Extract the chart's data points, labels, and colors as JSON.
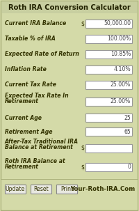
{
  "title": "Roth IRA Conversion Calculator",
  "bg_color": "#d4daa8",
  "title_bg": "#c8cfa0",
  "border_color": "#a8ae78",
  "fields": [
    {
      "label": "Current IRA Balance",
      "label2": "",
      "has_dollar": true,
      "value": "50,000.00"
    },
    {
      "label": "Taxable % of IRA",
      "label2": "",
      "has_dollar": false,
      "value": "100.00%"
    },
    {
      "label": "Expected Rate of Return",
      "label2": "",
      "has_dollar": false,
      "value": "10.85%"
    },
    {
      "label": "Inflation Rate",
      "label2": "",
      "has_dollar": false,
      "value": "4.10%"
    },
    {
      "label": "Current Tax Rate",
      "label2": "",
      "has_dollar": false,
      "value": "25.00%"
    },
    {
      "label": "Expected Tax Rate In",
      "label2": "Retirement",
      "has_dollar": false,
      "value": "25.00%"
    },
    {
      "label": "Current Age",
      "label2": "",
      "has_dollar": false,
      "value": "25"
    },
    {
      "label": "Retirement Age",
      "label2": "",
      "has_dollar": false,
      "value": "65"
    },
    {
      "label": "After-Tax Traditional IRA",
      "label2": "Balance at Retirement",
      "has_dollar": true,
      "value": ""
    },
    {
      "label": "Roth IRA Balance at",
      "label2": "Retirement",
      "has_dollar": true,
      "value": "0"
    }
  ],
  "buttons": [
    "Update",
    "Reset",
    "Print"
  ],
  "footer_text": "Your-Roth-IRA.Com",
  "input_bg": "#ffffff",
  "input_border": "#999999",
  "button_bg": "#e8e8e0",
  "button_border": "#888888",
  "text_color": "#333300",
  "value_color": "#444444",
  "footer_color": "#333300",
  "title_color": "#222200"
}
